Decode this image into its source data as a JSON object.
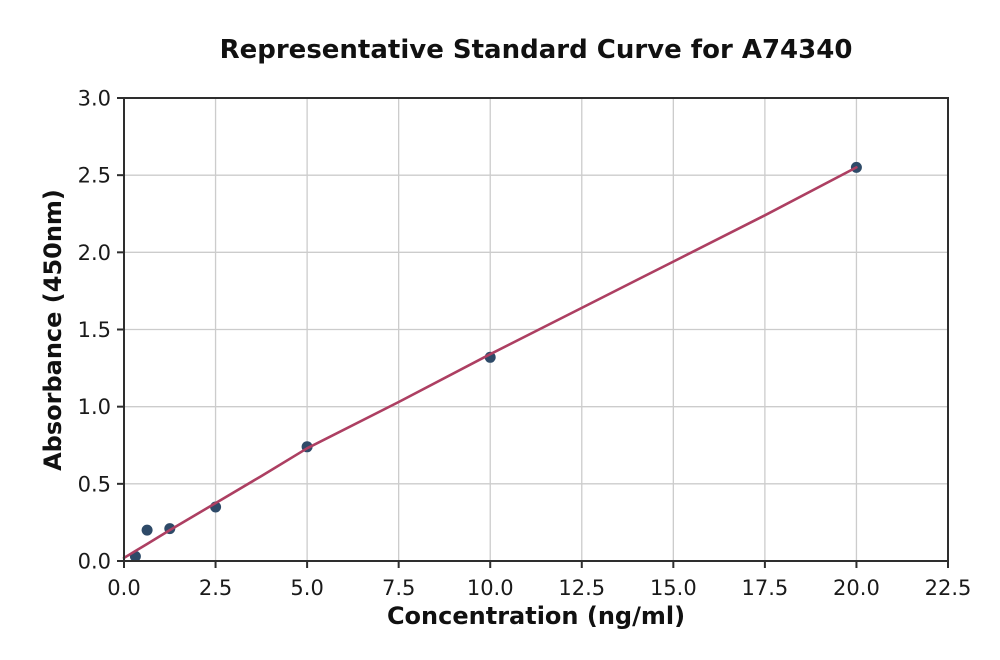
{
  "chart_data": {
    "type": "scatter",
    "title": "Representative Standard Curve for A74340",
    "xlabel": "Concentration (ng/ml)",
    "ylabel": "Absorbance (450nm)",
    "xlim": [
      0,
      22.5
    ],
    "ylim": [
      0,
      3.0
    ],
    "grid": true,
    "legend": "none",
    "xticks": {
      "values": [
        0,
        2.5,
        5,
        7.5,
        10,
        12.5,
        15,
        17.5,
        20,
        22.5
      ],
      "labels": [
        "0.0",
        "2.5",
        "5.0",
        "7.5",
        "10.0",
        "12.5",
        "15.0",
        "17.5",
        "20.0",
        "22.5"
      ]
    },
    "yticks": {
      "values": [
        0,
        0.5,
        1,
        1.5,
        2,
        2.5,
        3
      ],
      "labels": [
        "0.0",
        "0.5",
        "1.0",
        "1.5",
        "2.0",
        "2.5",
        "3.0"
      ]
    },
    "series": [
      {
        "name": "standard-points",
        "kind": "scatter",
        "color": "#2e4a68",
        "marker_radius": 5.5,
        "x": [
          0.31,
          0.63,
          1.25,
          2.5,
          5,
          10,
          20
        ],
        "y": [
          0.03,
          0.2,
          0.21,
          0.35,
          0.74,
          1.32,
          2.55
        ]
      },
      {
        "name": "fit-line",
        "kind": "line",
        "color": "#ad3f62",
        "width": 2.6,
        "x": [
          0,
          0.31,
          0.63,
          1.25,
          2.5,
          3.75,
          5,
          7.5,
          10,
          12.5,
          15,
          17.5,
          20
        ],
        "y": [
          0.02,
          0.065,
          0.11,
          0.2,
          0.375,
          0.55,
          0.73,
          1.03,
          1.34,
          1.64,
          1.94,
          2.24,
          2.55
        ]
      }
    ],
    "colors": {
      "grid": "#cccccc",
      "spine": "#2e2e2e",
      "tick_text": "#1a1a1a",
      "background": "#ffffff"
    },
    "tick_font_size": 21
  }
}
